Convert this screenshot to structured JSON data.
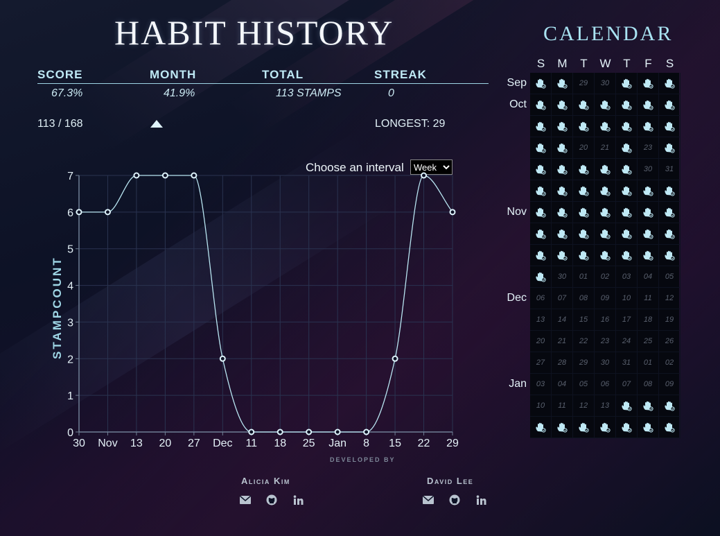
{
  "header": {
    "title": "HABIT HISTORY"
  },
  "stats": {
    "headers": [
      "SCORE",
      "MONTH",
      "TOTAL",
      "STREAK"
    ],
    "values": [
      "67.3%",
      "41.9%",
      "113 STAMPS",
      "0"
    ],
    "fraction": "113 / 168",
    "longest": "LONGEST: 29"
  },
  "interval": {
    "label": "Choose an interval",
    "selected": "Week"
  },
  "chart_data": {
    "type": "line",
    "ylabel": "STAMPCOUNT",
    "ylim": [
      0,
      7
    ],
    "yticks": [
      "0",
      "1",
      "2",
      "3",
      "4",
      "5",
      "6",
      "7"
    ],
    "categories": [
      "30",
      "Nov",
      "13",
      "20",
      "27",
      "Dec",
      "11",
      "18",
      "25",
      "Jan",
      "8",
      "15",
      "22",
      "29"
    ],
    "values": [
      6,
      6,
      7,
      7,
      7,
      2,
      0,
      0,
      0,
      0,
      0,
      2,
      7,
      6
    ],
    "grid": true,
    "colors": {
      "line": "#b9e6f2",
      "grid": "#2a3350",
      "axis": "#6f7f95"
    }
  },
  "footer": {
    "developed_by": "DEVELOPED BY",
    "developers": [
      {
        "name": "Alicia Kim",
        "icons": [
          "envelope-icon",
          "github-icon",
          "linkedin-icon"
        ]
      },
      {
        "name": "David Lee",
        "icons": [
          "envelope-icon",
          "github-icon",
          "linkedin-icon"
        ]
      }
    ]
  },
  "calendar": {
    "title": "CALENDAR",
    "weekdays": [
      "S",
      "M",
      "T",
      "W",
      "T",
      "F",
      "S"
    ],
    "month_labels": [
      {
        "label": "Sep",
        "row": 0
      },
      {
        "label": "Oct",
        "row": 1
      },
      {
        "label": "Nov",
        "row": 6
      },
      {
        "label": "Dec",
        "row": 10
      },
      {
        "label": "Jan",
        "row": 14
      }
    ],
    "stamp_color": "#bfe9f5",
    "rows": [
      [
        "*",
        "*",
        "29",
        "30",
        "*",
        "*",
        "*"
      ],
      [
        "*",
        "*",
        "*",
        "*",
        "*",
        "*",
        "*"
      ],
      [
        "*",
        "*",
        "*",
        "*",
        "*",
        "*",
        "*"
      ],
      [
        "*",
        "*",
        "20",
        "21",
        "*",
        "23",
        "*"
      ],
      [
        "*",
        "*",
        "*",
        "*",
        "*",
        "30",
        "31"
      ],
      [
        "*",
        "*",
        "*",
        "*",
        "*",
        "*",
        "*"
      ],
      [
        "*",
        "*",
        "*",
        "*",
        "*",
        "*",
        "*"
      ],
      [
        "*",
        "*",
        "*",
        "*",
        "*",
        "*",
        "*"
      ],
      [
        "*",
        "*",
        "*",
        "*",
        "*",
        "*",
        "*"
      ],
      [
        "*",
        "30",
        "01",
        "02",
        "03",
        "04",
        "05"
      ],
      [
        "06",
        "07",
        "08",
        "09",
        "10",
        "11",
        "12"
      ],
      [
        "13",
        "14",
        "15",
        "16",
        "17",
        "18",
        "19"
      ],
      [
        "20",
        "21",
        "22",
        "23",
        "24",
        "25",
        "26"
      ],
      [
        "27",
        "28",
        "29",
        "30",
        "31",
        "01",
        "02"
      ],
      [
        "03",
        "04",
        "05",
        "06",
        "07",
        "08",
        "09"
      ],
      [
        "10",
        "11",
        "12",
        "13",
        "*",
        "*",
        "*"
      ],
      [
        "*",
        "*",
        "*",
        "*",
        "*",
        "*",
        "*"
      ]
    ]
  }
}
